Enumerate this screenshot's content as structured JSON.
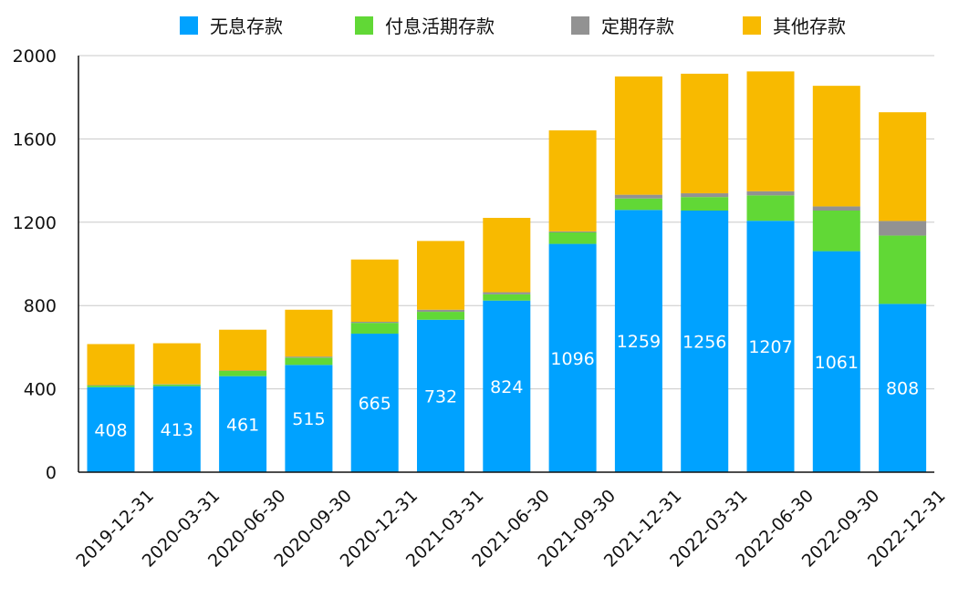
{
  "chart_data": {
    "type": "bar",
    "stacked": true,
    "categories": [
      "2019-12-31",
      "2020-03-31",
      "2020-06-30",
      "2020-09-30",
      "2020-12-31",
      "2021-03-31",
      "2021-06-30",
      "2021-09-30",
      "2021-12-31",
      "2022-03-31",
      "2022-06-30",
      "2022-09-30",
      "2022-12-31"
    ],
    "series": [
      {
        "name": "无息存款",
        "color": "#00a2ff",
        "values": [
          408,
          413,
          461,
          515,
          665,
          732,
          824,
          1096,
          1259,
          1256,
          1207,
          1061,
          808
        ],
        "show_labels": true
      },
      {
        "name": "付息活期存款",
        "color": "#61d836",
        "values": [
          8,
          8,
          25,
          35,
          52,
          38,
          30,
          55,
          55,
          65,
          122,
          195,
          328
        ],
        "show_labels": false
      },
      {
        "name": "定期存款",
        "color": "#929292",
        "values": [
          2,
          2,
          2,
          5,
          5,
          10,
          10,
          5,
          18,
          18,
          20,
          20,
          70
        ],
        "show_labels": false
      },
      {
        "name": "其他存款",
        "color": "#f8ba00",
        "values": [
          197,
          196,
          196,
          225,
          299,
          330,
          357,
          485,
          568,
          574,
          575,
          579,
          522
        ],
        "show_labels": false
      }
    ],
    "ylim": [
      0,
      2000
    ],
    "yticks": [
      0,
      400,
      800,
      1200,
      1600,
      2000
    ],
    "grid": true,
    "legend": "top",
    "title": "",
    "xlabel": "",
    "ylabel": ""
  }
}
